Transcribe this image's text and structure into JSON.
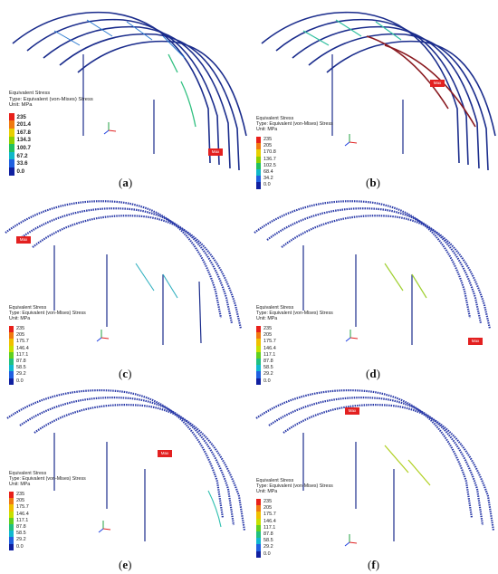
{
  "legend": {
    "line1": "Equivalent Stress",
    "line2": "Type: Equivalent (von-Mises) Stress",
    "line3": "Unit: MPa"
  },
  "max_label": "Max",
  "panels": [
    {
      "id": "a",
      "caption": "a",
      "ticks": [
        "235",
        "201.4",
        "167.8",
        "134.3",
        "100.7",
        "67.2",
        "33.6",
        "0.0"
      ]
    },
    {
      "id": "b",
      "caption": "b",
      "ticks": [
        "235",
        "205",
        "170.8",
        "136.7",
        "102.5",
        "68.4",
        "34.2",
        "0.0"
      ]
    },
    {
      "id": "c",
      "caption": "c",
      "ticks": [
        "235",
        "205",
        "175.7",
        "146.4",
        "117.1",
        "87.8",
        "58.5",
        "29.2",
        "0.0"
      ]
    },
    {
      "id": "d",
      "caption": "d",
      "ticks": [
        "235",
        "205",
        "175.7",
        "146.4",
        "117.1",
        "87.8",
        "58.5",
        "29.2",
        "0.0"
      ]
    },
    {
      "id": "e",
      "caption": "e",
      "ticks": [
        "235",
        "205",
        "175.7",
        "146.4",
        "117.1",
        "87.8",
        "58.5",
        "29.2",
        "0.0"
      ]
    },
    {
      "id": "f",
      "caption": "f",
      "ticks": [
        "235",
        "205",
        "175.7",
        "146.4",
        "117.1",
        "87.8",
        "58.5",
        "29.2",
        "0.0"
      ]
    }
  ],
  "colors": {
    "scale8": [
      "#e8201a",
      "#f07a10",
      "#e8d000",
      "#8cd000",
      "#20c060",
      "#10b8c8",
      "#2060e0",
      "#1020a0"
    ],
    "scale9": [
      "#e8201a",
      "#f07a10",
      "#f0c000",
      "#c8e000",
      "#60d020",
      "#20c080",
      "#10b8d0",
      "#2060e0",
      "#1020a0"
    ],
    "frame_blue": "#1a2c8c",
    "max_tag": "#e32020"
  }
}
